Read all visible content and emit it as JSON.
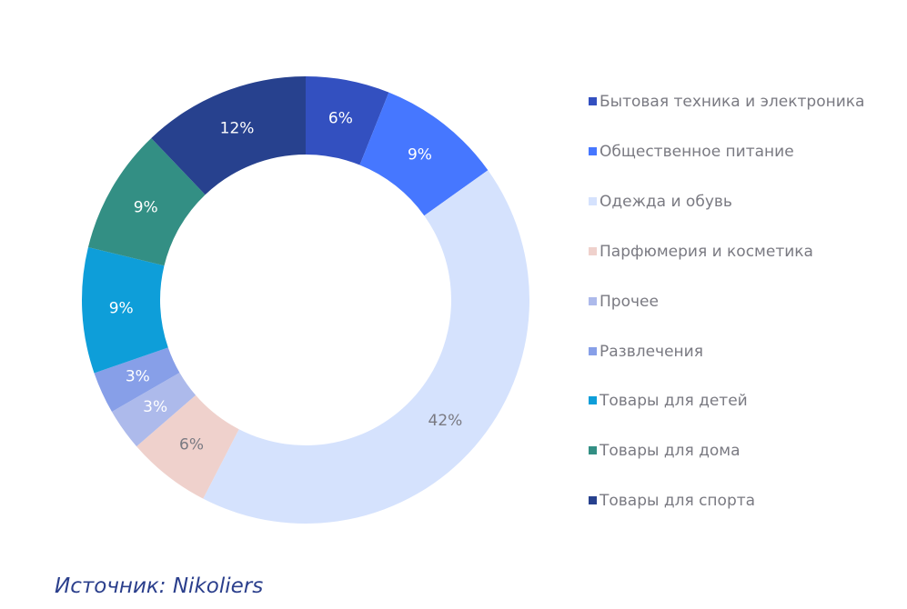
{
  "chart_data": {
    "type": "pie",
    "variant": "donut",
    "slices": [
      {
        "label": "Бытовая техника и электроника",
        "value": 6,
        "display": "6%",
        "color": "#3350c0",
        "text_color": "#ffffff"
      },
      {
        "label": "Общественное питание",
        "value": 9,
        "display": "9%",
        "color": "#4677ff",
        "text_color": "#ffffff"
      },
      {
        "label": "Одежда и обувь",
        "value": 42,
        "display": "42%",
        "color": "#d5e2fd",
        "text_color": "#7a7a82"
      },
      {
        "label": "Парфюмерия и косметика",
        "value": 6,
        "display": "6%",
        "color": "#efd1cc",
        "text_color": "#7a7a82"
      },
      {
        "label": "Прочее",
        "value": 3,
        "display": "3%",
        "color": "#adbaeb",
        "text_color": "#ffffff"
      },
      {
        "label": "Развлечения",
        "value": 3,
        "display": "3%",
        "color": "#879fe8",
        "text_color": "#ffffff"
      },
      {
        "label": "Товары для детей",
        "value": 9,
        "display": "9%",
        "color": "#0e9ed9",
        "text_color": "#ffffff"
      },
      {
        "label": "Товары для дома",
        "value": 9,
        "display": "9%",
        "color": "#338f84",
        "text_color": "#ffffff"
      },
      {
        "label": "Товары для спорта",
        "value": 12,
        "display": "12%",
        "color": "#27418e",
        "text_color": "#ffffff"
      }
    ],
    "legend_position": "right"
  },
  "source": "Источник: Nikoliers"
}
